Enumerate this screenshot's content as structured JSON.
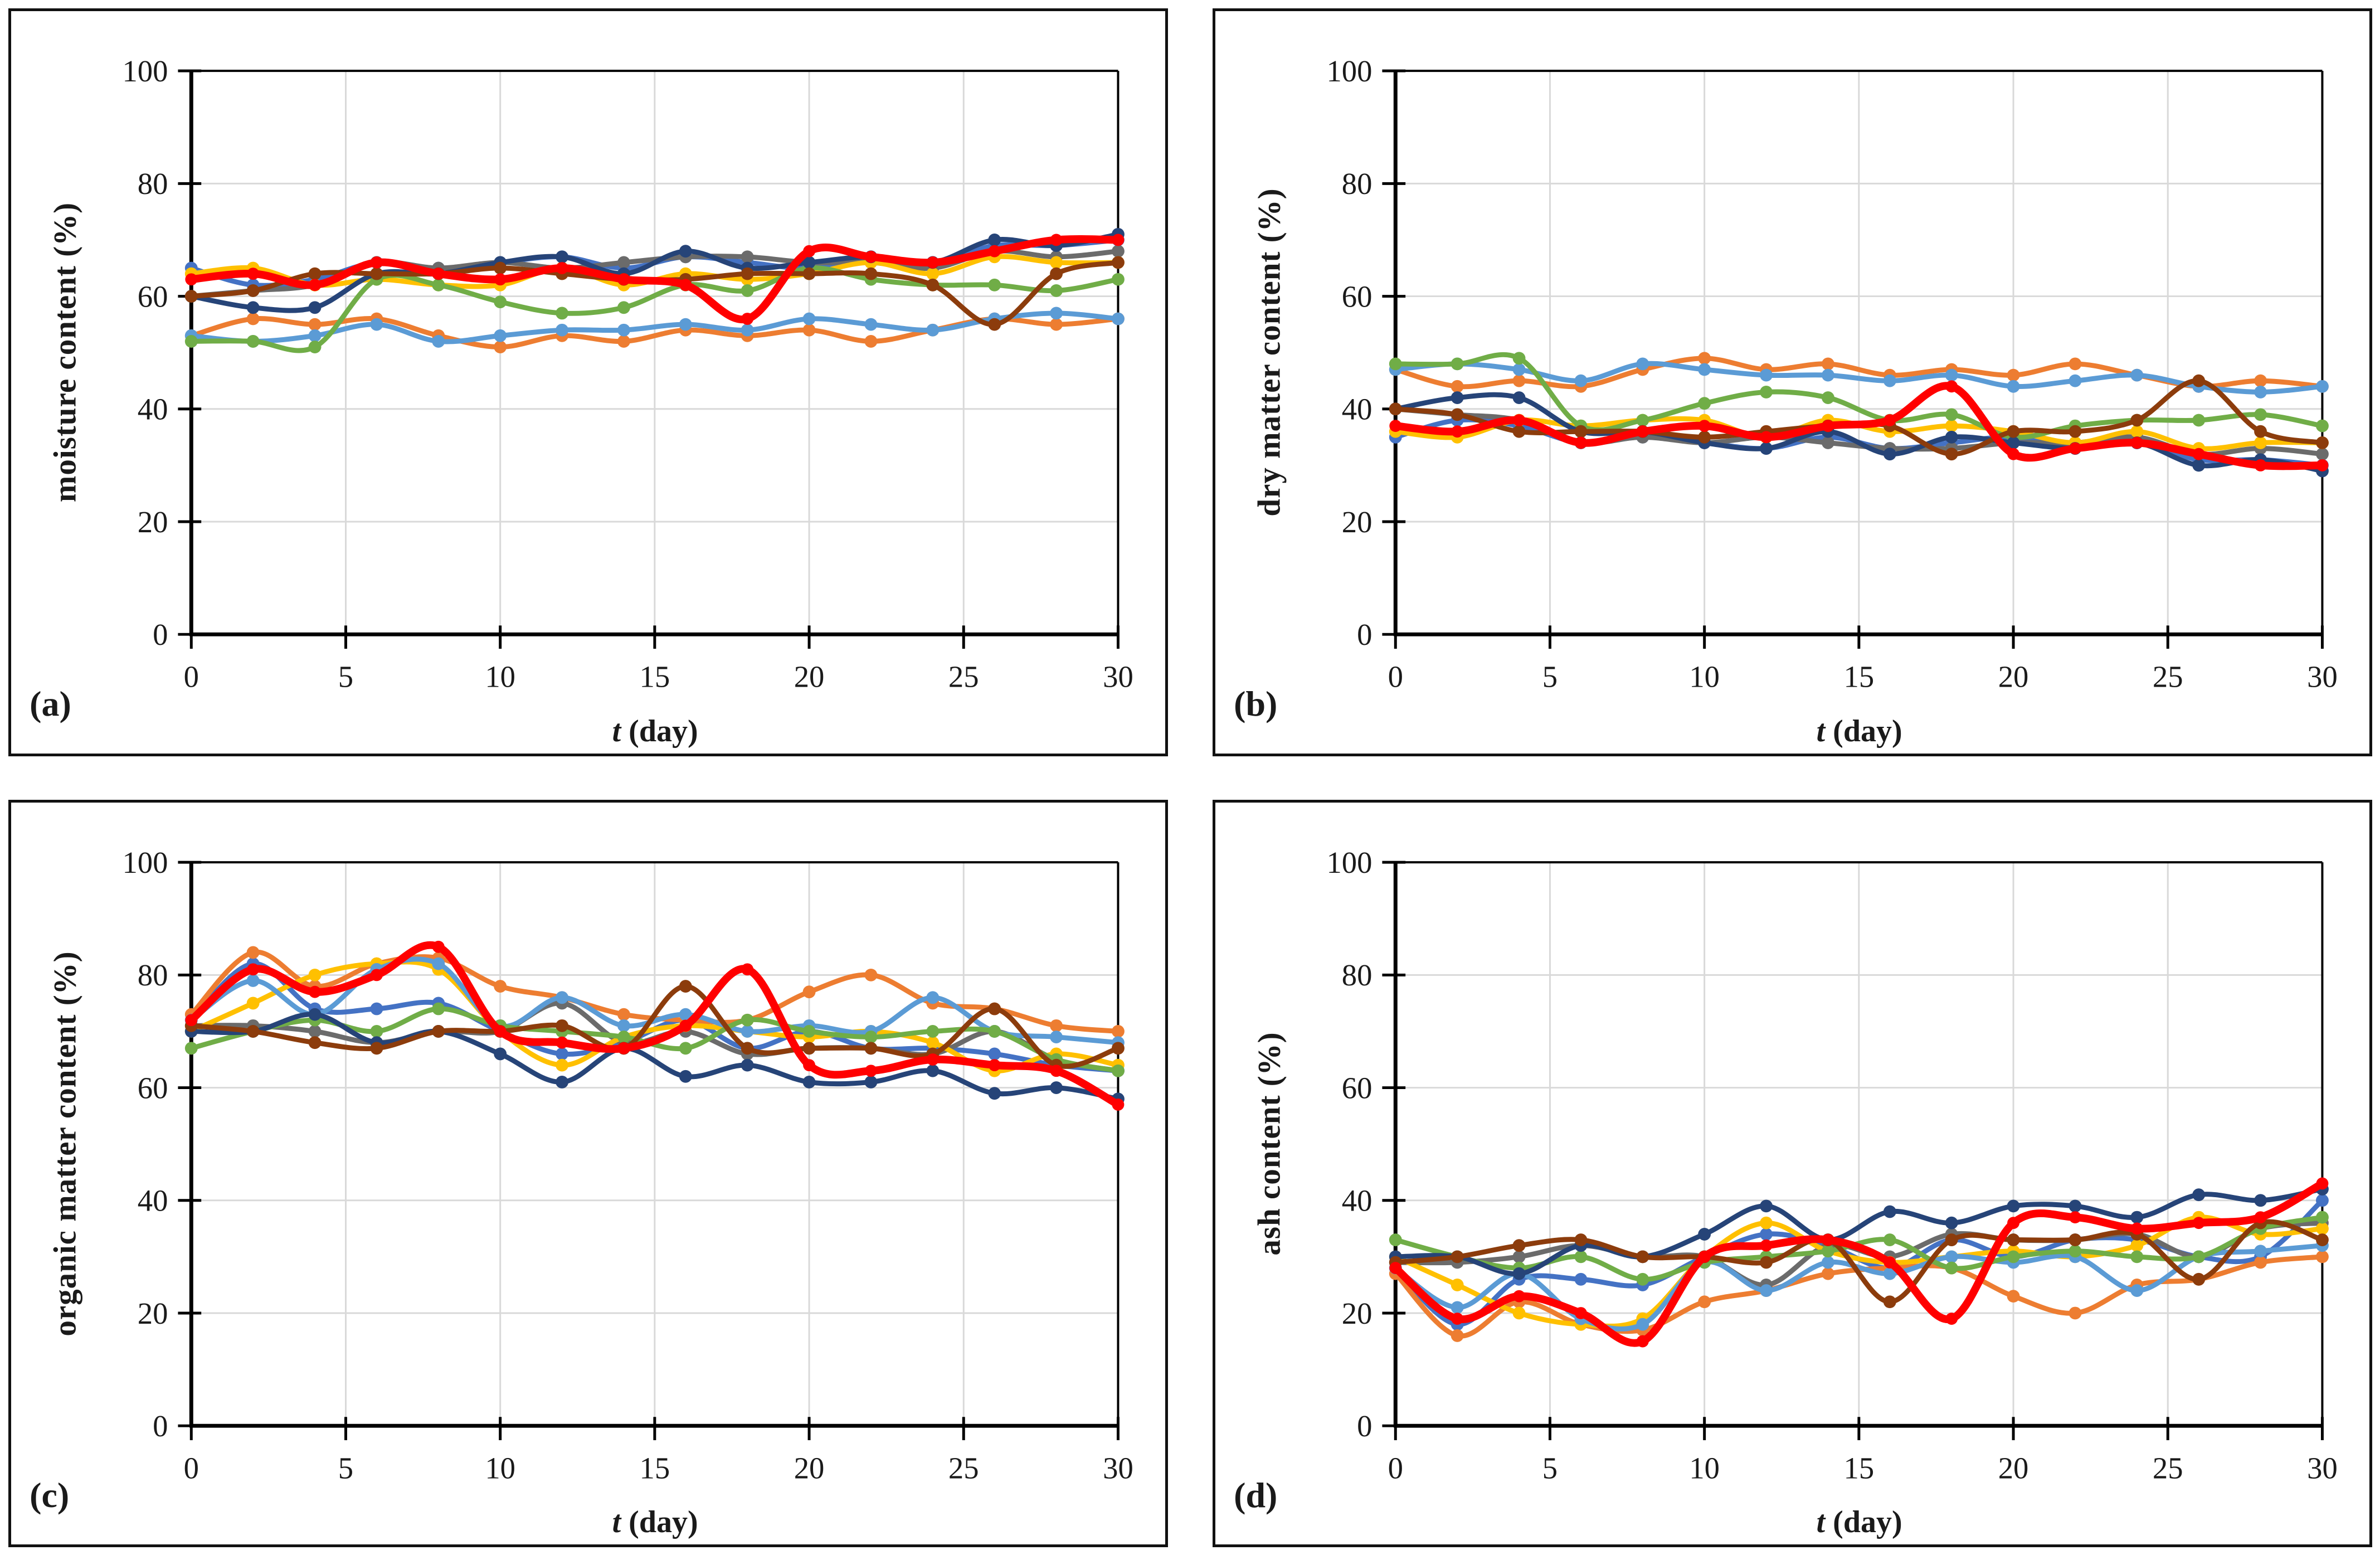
{
  "figure": {
    "background": "#FFFFFF",
    "grid_color": "#D9D9D9",
    "axis_color": "#000000",
    "text_color": "#1a1a1a"
  },
  "chart_data": [
    {
      "type": "line",
      "panel_label": "(a)",
      "ylabel": "moisture content (%)",
      "xlabel_var": "t",
      "xlabel_unit": "(day)",
      "xlim": [
        0,
        30
      ],
      "ylim": [
        0,
        100
      ],
      "xticks": [
        0,
        5,
        10,
        15,
        20,
        25,
        30
      ],
      "yticks": [
        0,
        20,
        40,
        60,
        80,
        100
      ],
      "grid": true,
      "legend_position": "none",
      "marker": "circle",
      "x": [
        0,
        2,
        4,
        6,
        8,
        10,
        12,
        14,
        16,
        18,
        20,
        22,
        24,
        26,
        28,
        30
      ],
      "series": [
        {
          "name": "blue",
          "color": "#4472C4",
          "thick": false,
          "values": [
            65,
            62,
            63,
            66,
            65,
            66,
            67,
            65,
            67,
            66,
            65,
            67,
            66,
            69,
            69,
            70
          ]
        },
        {
          "name": "orange",
          "color": "#ED7D31",
          "thick": false,
          "values": [
            53,
            56,
            55,
            56,
            53,
            51,
            53,
            52,
            54,
            53,
            54,
            52,
            54,
            56,
            55,
            56
          ]
        },
        {
          "name": "gray",
          "color": "#6B6B6B",
          "thick": false,
          "values": [
            60,
            61,
            62,
            66,
            65,
            66,
            65,
            66,
            67,
            67,
            66,
            66,
            65,
            68,
            67,
            68
          ]
        },
        {
          "name": "gold",
          "color": "#FFC000",
          "thick": false,
          "values": [
            64,
            65,
            62,
            63,
            62,
            62,
            65,
            62,
            64,
            63,
            64,
            66,
            64,
            67,
            66,
            66
          ]
        },
        {
          "name": "light-blue",
          "color": "#5B9BD5",
          "thick": false,
          "values": [
            53,
            52,
            53,
            55,
            52,
            53,
            54,
            54,
            55,
            54,
            56,
            55,
            54,
            56,
            57,
            56
          ]
        },
        {
          "name": "green",
          "color": "#70AD47",
          "thick": false,
          "values": [
            52,
            52,
            51,
            63,
            62,
            59,
            57,
            58,
            62,
            61,
            65,
            63,
            62,
            62,
            61,
            63
          ]
        },
        {
          "name": "dark-blue",
          "color": "#264478",
          "thick": false,
          "values": [
            60,
            58,
            58,
            64,
            64,
            66,
            67,
            64,
            68,
            65,
            66,
            67,
            66,
            70,
            69,
            71
          ]
        },
        {
          "name": "brown",
          "color": "#8C3C0C",
          "thick": false,
          "values": [
            60,
            61,
            64,
            64,
            64,
            65,
            64,
            63,
            63,
            64,
            64,
            64,
            62,
            55,
            64,
            66
          ]
        },
        {
          "name": "red",
          "color": "#FF0000",
          "thick": true,
          "values": [
            63,
            64,
            62,
            66,
            64,
            63,
            65,
            63,
            62,
            56,
            68,
            67,
            66,
            68,
            70,
            70
          ]
        }
      ]
    },
    {
      "type": "line",
      "panel_label": "(b)",
      "ylabel": "dry matter content (%)",
      "xlabel_var": "t",
      "xlabel_unit": "(day)",
      "xlim": [
        0,
        30
      ],
      "ylim": [
        0,
        100
      ],
      "xticks": [
        0,
        5,
        10,
        15,
        20,
        25,
        30
      ],
      "yticks": [
        0,
        20,
        40,
        60,
        80,
        100
      ],
      "grid": true,
      "legend_position": "none",
      "marker": "circle",
      "x": [
        0,
        2,
        4,
        6,
        8,
        10,
        12,
        14,
        16,
        18,
        20,
        22,
        24,
        26,
        28,
        30
      ],
      "series": [
        {
          "name": "blue",
          "color": "#4472C4",
          "thick": false,
          "values": [
            35,
            38,
            37,
            34,
            35,
            34,
            33,
            35,
            33,
            34,
            35,
            33,
            34,
            31,
            31,
            30
          ]
        },
        {
          "name": "orange",
          "color": "#ED7D31",
          "thick": false,
          "values": [
            47,
            44,
            45,
            44,
            47,
            49,
            47,
            48,
            46,
            47,
            46,
            48,
            46,
            44,
            45,
            44
          ]
        },
        {
          "name": "gray",
          "color": "#6B6B6B",
          "thick": false,
          "values": [
            40,
            39,
            38,
            34,
            35,
            34,
            35,
            34,
            33,
            33,
            34,
            34,
            35,
            32,
            33,
            32
          ]
        },
        {
          "name": "gold",
          "color": "#FFC000",
          "thick": false,
          "values": [
            36,
            35,
            38,
            37,
            38,
            38,
            35,
            38,
            36,
            37,
            36,
            34,
            36,
            33,
            34,
            34
          ]
        },
        {
          "name": "light-blue",
          "color": "#5B9BD5",
          "thick": false,
          "values": [
            47,
            48,
            47,
            45,
            48,
            47,
            46,
            46,
            45,
            46,
            44,
            45,
            46,
            44,
            43,
            44
          ]
        },
        {
          "name": "green",
          "color": "#70AD47",
          "thick": false,
          "values": [
            48,
            48,
            49,
            37,
            38,
            41,
            43,
            42,
            38,
            39,
            35,
            37,
            38,
            38,
            39,
            37
          ]
        },
        {
          "name": "dark-blue",
          "color": "#264478",
          "thick": false,
          "values": [
            40,
            42,
            42,
            36,
            36,
            34,
            33,
            36,
            32,
            35,
            34,
            33,
            34,
            30,
            31,
            29
          ]
        },
        {
          "name": "brown",
          "color": "#8C3C0C",
          "thick": false,
          "values": [
            40,
            39,
            36,
            36,
            36,
            35,
            36,
            37,
            37,
            32,
            36,
            36,
            38,
            45,
            36,
            34
          ]
        },
        {
          "name": "red",
          "color": "#FF0000",
          "thick": true,
          "values": [
            37,
            36,
            38,
            34,
            36,
            37,
            35,
            37,
            38,
            44,
            32,
            33,
            34,
            32,
            30,
            30
          ]
        }
      ]
    },
    {
      "type": "line",
      "panel_label": "(c)",
      "ylabel": "organic matter content (%)",
      "xlabel_var": "t",
      "xlabel_unit": "(day)",
      "xlim": [
        0,
        30
      ],
      "ylim": [
        0,
        100
      ],
      "xticks": [
        0,
        5,
        10,
        15,
        20,
        25,
        30
      ],
      "yticks": [
        0,
        20,
        40,
        60,
        80,
        100
      ],
      "grid": true,
      "legend_position": "none",
      "marker": "circle",
      "x": [
        0,
        2,
        4,
        6,
        8,
        10,
        12,
        14,
        16,
        18,
        20,
        22,
        24,
        26,
        28,
        30
      ],
      "series": [
        {
          "name": "blue",
          "color": "#4472C4",
          "thick": false,
          "values": [
            72,
            82,
            74,
            74,
            75,
            70,
            66,
            68,
            72,
            67,
            70,
            67,
            67,
            66,
            64,
            63
          ]
        },
        {
          "name": "orange",
          "color": "#ED7D31",
          "thick": false,
          "values": [
            73,
            84,
            78,
            82,
            83,
            78,
            76,
            73,
            72,
            72,
            77,
            80,
            75,
            74,
            71,
            70
          ]
        },
        {
          "name": "gray",
          "color": "#6B6B6B",
          "thick": false,
          "values": [
            71,
            71,
            70,
            68,
            70,
            70,
            75,
            68,
            70,
            66,
            67,
            67,
            66,
            70,
            65,
            63
          ]
        },
        {
          "name": "gold",
          "color": "#FFC000",
          "thick": false,
          "values": [
            70,
            75,
            80,
            82,
            81,
            70,
            64,
            69,
            71,
            70,
            69,
            70,
            68,
            63,
            66,
            64
          ]
        },
        {
          "name": "light-blue",
          "color": "#5B9BD5",
          "thick": false,
          "values": [
            72,
            79,
            73,
            81,
            82,
            71,
            76,
            71,
            73,
            70,
            71,
            70,
            76,
            70,
            69,
            68
          ]
        },
        {
          "name": "green",
          "color": "#70AD47",
          "thick": false,
          "values": [
            67,
            70,
            72,
            70,
            74,
            71,
            70,
            69,
            67,
            72,
            70,
            69,
            70,
            70,
            65,
            63
          ]
        },
        {
          "name": "dark-blue",
          "color": "#264478",
          "thick": false,
          "values": [
            70,
            70,
            73,
            68,
            70,
            66,
            61,
            67,
            62,
            64,
            61,
            61,
            63,
            59,
            60,
            58
          ]
        },
        {
          "name": "brown",
          "color": "#8C3C0C",
          "thick": false,
          "values": [
            71,
            70,
            68,
            67,
            70,
            70,
            71,
            67,
            78,
            67,
            67,
            67,
            66,
            74,
            64,
            67
          ]
        },
        {
          "name": "red",
          "color": "#FF0000",
          "thick": true,
          "values": [
            72,
            81,
            77,
            80,
            85,
            70,
            68,
            67,
            71,
            81,
            64,
            63,
            65,
            64,
            63,
            57
          ]
        }
      ]
    },
    {
      "type": "line",
      "panel_label": "(d)",
      "ylabel": "ash content (%)",
      "xlabel_var": "t",
      "xlabel_unit": "(day)",
      "xlim": [
        0,
        30
      ],
      "ylim": [
        0,
        100
      ],
      "xticks": [
        0,
        5,
        10,
        15,
        20,
        25,
        30
      ],
      "yticks": [
        0,
        20,
        40,
        60,
        80,
        100
      ],
      "grid": true,
      "legend_position": "none",
      "marker": "circle",
      "x": [
        0,
        2,
        4,
        6,
        8,
        10,
        12,
        14,
        16,
        18,
        20,
        22,
        24,
        26,
        28,
        30
      ],
      "series": [
        {
          "name": "blue",
          "color": "#4472C4",
          "thick": false,
          "values": [
            28,
            18,
            26,
            26,
            25,
            30,
            34,
            32,
            28,
            33,
            30,
            33,
            33,
            30,
            30,
            40
          ]
        },
        {
          "name": "orange",
          "color": "#ED7D31",
          "thick": false,
          "values": [
            27,
            16,
            22,
            18,
            17,
            22,
            24,
            27,
            28,
            28,
            23,
            20,
            25,
            26,
            29,
            30
          ]
        },
        {
          "name": "gray",
          "color": "#6B6B6B",
          "thick": false,
          "values": [
            29,
            29,
            30,
            32,
            30,
            30,
            25,
            32,
            30,
            34,
            33,
            33,
            34,
            30,
            35,
            36
          ]
        },
        {
          "name": "gold",
          "color": "#FFC000",
          "thick": false,
          "values": [
            30,
            25,
            20,
            18,
            19,
            30,
            36,
            31,
            29,
            30,
            31,
            30,
            32,
            37,
            34,
            35
          ]
        },
        {
          "name": "light-blue",
          "color": "#5B9BD5",
          "thick": false,
          "values": [
            28,
            21,
            27,
            19,
            18,
            29,
            24,
            29,
            27,
            30,
            29,
            30,
            24,
            30,
            31,
            32
          ]
        },
        {
          "name": "green",
          "color": "#70AD47",
          "thick": false,
          "values": [
            33,
            30,
            28,
            30,
            26,
            29,
            30,
            31,
            33,
            28,
            30,
            31,
            30,
            30,
            35,
            37
          ]
        },
        {
          "name": "dark-blue",
          "color": "#264478",
          "thick": false,
          "values": [
            30,
            30,
            27,
            32,
            30,
            34,
            39,
            33,
            38,
            36,
            39,
            39,
            37,
            41,
            40,
            42
          ]
        },
        {
          "name": "brown",
          "color": "#8C3C0C",
          "thick": false,
          "values": [
            29,
            30,
            32,
            33,
            30,
            30,
            29,
            33,
            22,
            33,
            33,
            33,
            34,
            26,
            36,
            33
          ]
        },
        {
          "name": "red",
          "color": "#FF0000",
          "thick": true,
          "values": [
            28,
            19,
            23,
            20,
            15,
            30,
            32,
            33,
            29,
            19,
            36,
            37,
            35,
            36,
            37,
            43
          ]
        }
      ]
    }
  ]
}
